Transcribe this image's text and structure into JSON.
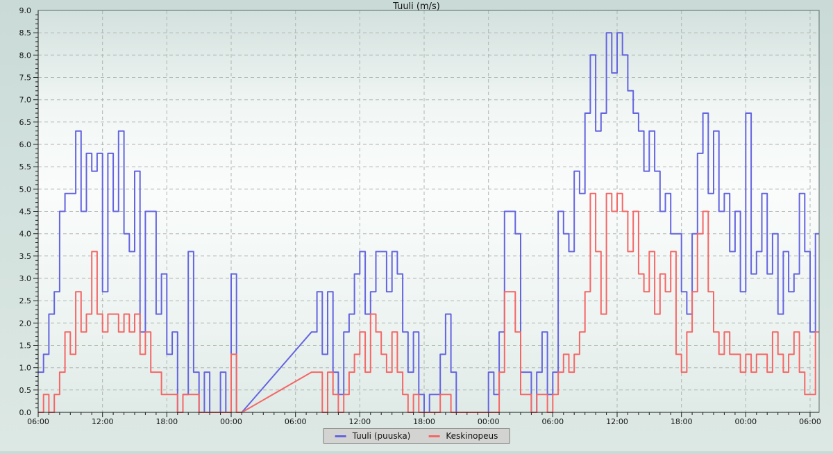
{
  "header": {
    "title": "Tuuli (m/s)"
  },
  "chart_data": {
    "type": "line",
    "title": "Tuuli (m/s)",
    "subtitle": "",
    "grid": true,
    "legend_position": "bottom-center",
    "ylim": [
      0.0,
      9.0
    ],
    "y_tick_step": 0.5,
    "y_tick_labels": [
      "0.0",
      "0.5",
      "1.0",
      "1.5",
      "2.0",
      "2.5",
      "3.0",
      "3.5",
      "4.0",
      "4.5",
      "5.0",
      "5.5",
      "6.0",
      "6.5",
      "7.0",
      "7.5",
      "8.0",
      "8.5",
      "9.0"
    ],
    "x_axis": {
      "unit": "time-of-day",
      "tick_interval_hours": 6,
      "minor_tick_hours": 1,
      "labels": [
        "06:00",
        "12:00",
        "18:00",
        "00:00",
        "06:00",
        "12:00",
        "18:00",
        "00:00",
        "06:00",
        "12:00",
        "18:00",
        "00:00",
        "06:00"
      ]
    },
    "x_step_hours": 0.5,
    "x_total_hours": 72.86,
    "gap_note": "missing data ~hours 19-25.5 drawn as straight interpolation lines",
    "series": [
      {
        "name": "Tuuli (puuska)",
        "color": "#6464e0",
        "values": [
          0.9,
          1.3,
          2.2,
          2.7,
          4.5,
          4.9,
          4.9,
          6.3,
          4.5,
          5.8,
          5.4,
          5.8,
          2.7,
          5.8,
          4.5,
          6.3,
          4.0,
          3.6,
          5.4,
          1.8,
          4.5,
          4.5,
          2.2,
          3.1,
          1.3,
          1.8,
          0,
          0.4,
          3.6,
          0.9,
          0,
          0.9,
          0,
          0,
          0.9,
          0,
          3.1,
          0,
          null,
          null,
          null,
          null,
          null,
          null,
          null,
          null,
          null,
          null,
          null,
          null,
          null,
          1.8,
          2.7,
          1.3,
          2.7,
          0.9,
          0.4,
          1.8,
          2.2,
          3.1,
          3.6,
          2.2,
          2.7,
          3.6,
          3.6,
          2.7,
          3.6,
          3.1,
          1.8,
          0.9,
          1.8,
          0.4,
          0,
          0.4,
          0.4,
          1.3,
          2.2,
          0.9,
          0,
          0,
          0,
          0,
          0,
          0,
          0.9,
          0.4,
          1.8,
          4.5,
          4.5,
          4.0,
          0.9,
          0.9,
          0,
          0.9,
          1.8,
          0.4,
          0.9,
          4.5,
          4.0,
          3.6,
          5.4,
          4.9,
          6.7,
          8.0,
          6.3,
          6.7,
          8.5,
          7.6,
          8.5,
          8.0,
          7.2,
          6.7,
          6.3,
          5.4,
          6.3,
          5.4,
          4.5,
          4.9,
          4.0,
          4.0,
          2.7,
          2.2,
          4.0,
          5.8,
          6.7,
          4.9,
          6.3,
          4.5,
          4.9,
          3.6,
          4.5,
          2.7,
          6.7,
          3.1,
          3.6,
          4.9,
          3.1,
          4.0,
          2.2,
          3.6,
          2.7,
          3.1,
          4.9,
          3.6,
          1.8,
          4.0
        ]
      },
      {
        "name": "Keskinopeus",
        "color": "#f56666",
        "values": [
          0,
          0.4,
          0,
          0.4,
          0.9,
          1.8,
          1.3,
          2.7,
          1.8,
          2.2,
          3.6,
          2.2,
          1.8,
          2.2,
          2.2,
          1.8,
          2.2,
          1.8,
          2.2,
          1.3,
          1.8,
          0.9,
          0.9,
          0.4,
          0.4,
          0.4,
          0,
          0.4,
          0.4,
          0.4,
          0,
          0,
          0,
          0,
          0,
          0,
          1.3,
          0,
          null,
          null,
          null,
          null,
          null,
          null,
          null,
          null,
          null,
          null,
          null,
          null,
          null,
          0.9,
          0.9,
          0,
          0.9,
          0.4,
          0,
          0.4,
          0.9,
          1.3,
          1.8,
          0.9,
          2.2,
          1.8,
          1.3,
          0.9,
          1.8,
          0.9,
          0.4,
          0,
          0.4,
          0,
          0,
          0,
          0,
          0.4,
          0.4,
          0,
          0,
          0,
          0,
          0,
          0,
          0,
          0,
          0,
          0.9,
          2.7,
          2.7,
          1.8,
          0.4,
          0.4,
          0,
          0.4,
          0.4,
          0,
          0.4,
          0.9,
          1.3,
          0.9,
          1.3,
          1.8,
          2.7,
          4.9,
          3.6,
          2.2,
          4.9,
          4.5,
          4.9,
          4.5,
          3.6,
          4.5,
          3.1,
          2.7,
          3.6,
          2.2,
          3.1,
          2.7,
          3.6,
          1.3,
          0.9,
          1.8,
          2.7,
          4.0,
          4.5,
          2.7,
          1.8,
          1.3,
          1.8,
          1.3,
          1.3,
          0.9,
          1.3,
          0.9,
          1.3,
          1.3,
          0.9,
          1.8,
          1.3,
          0.9,
          1.3,
          1.8,
          0.9,
          0.4,
          0.4,
          1.8
        ]
      }
    ]
  }
}
